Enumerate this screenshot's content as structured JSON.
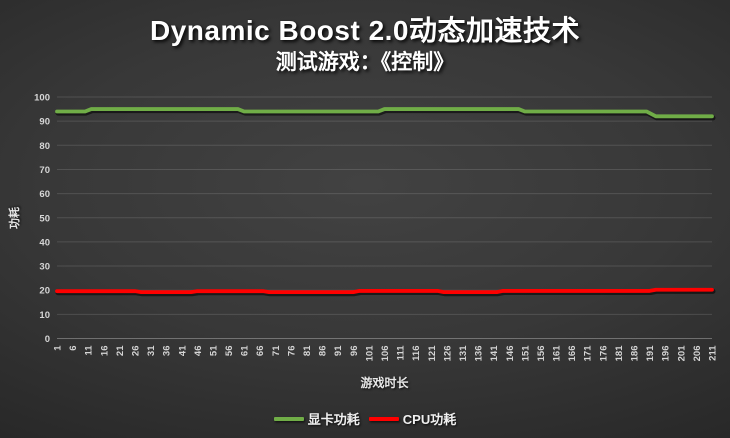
{
  "chart_data": {
    "type": "line",
    "title": "Dynamic Boost 2.0动态加速技术",
    "subtitle": "测试游戏：《控制》",
    "xlabel": "游戏时长",
    "ylabel": "功耗",
    "xlim": [
      1,
      211
    ],
    "ylim": [
      0,
      100
    ],
    "grid": true,
    "legend_position": "bottom",
    "y_ticks": [
      0,
      10,
      20,
      30,
      40,
      50,
      60,
      70,
      80,
      90,
      100
    ],
    "x_ticks": [
      1,
      6,
      11,
      16,
      21,
      26,
      31,
      36,
      41,
      46,
      51,
      56,
      61,
      66,
      71,
      76,
      81,
      86,
      91,
      96,
      101,
      106,
      111,
      116,
      121,
      126,
      131,
      136,
      141,
      146,
      151,
      156,
      161,
      166,
      171,
      176,
      181,
      186,
      191,
      196,
      201,
      206,
      211
    ],
    "series": [
      {
        "name": "显卡功耗",
        "color": "#70ad47",
        "segments": [
          {
            "from": 1,
            "to": 10,
            "value": 94
          },
          {
            "from": 12,
            "to": 59,
            "value": 95
          },
          {
            "from": 61,
            "to": 104,
            "value": 94
          },
          {
            "from": 106,
            "to": 149,
            "value": 95
          },
          {
            "from": 151,
            "to": 190,
            "value": 94
          },
          {
            "from": 193,
            "to": 211,
            "value": 92
          }
        ]
      },
      {
        "name": "CPU功耗",
        "color": "#ff0000",
        "segments": [
          {
            "from": 1,
            "to": 26,
            "value": 19.6
          },
          {
            "from": 28,
            "to": 44,
            "value": 19.2
          },
          {
            "from": 46,
            "to": 67,
            "value": 19.6
          },
          {
            "from": 69,
            "to": 96,
            "value": 19.2
          },
          {
            "from": 98,
            "to": 123,
            "value": 19.7
          },
          {
            "from": 125,
            "to": 142,
            "value": 19.2
          },
          {
            "from": 144,
            "to": 191,
            "value": 19.7
          },
          {
            "from": 193,
            "to": 211,
            "value": 20.2
          }
        ]
      }
    ],
    "colors": {
      "background_center": "#424242",
      "background_edge": "#1d1d1d",
      "gridline": "rgba(255,255,255,0.13)",
      "axis_line": "rgba(255,255,255,0.30)",
      "tick_text": "#d6d6d6"
    }
  }
}
